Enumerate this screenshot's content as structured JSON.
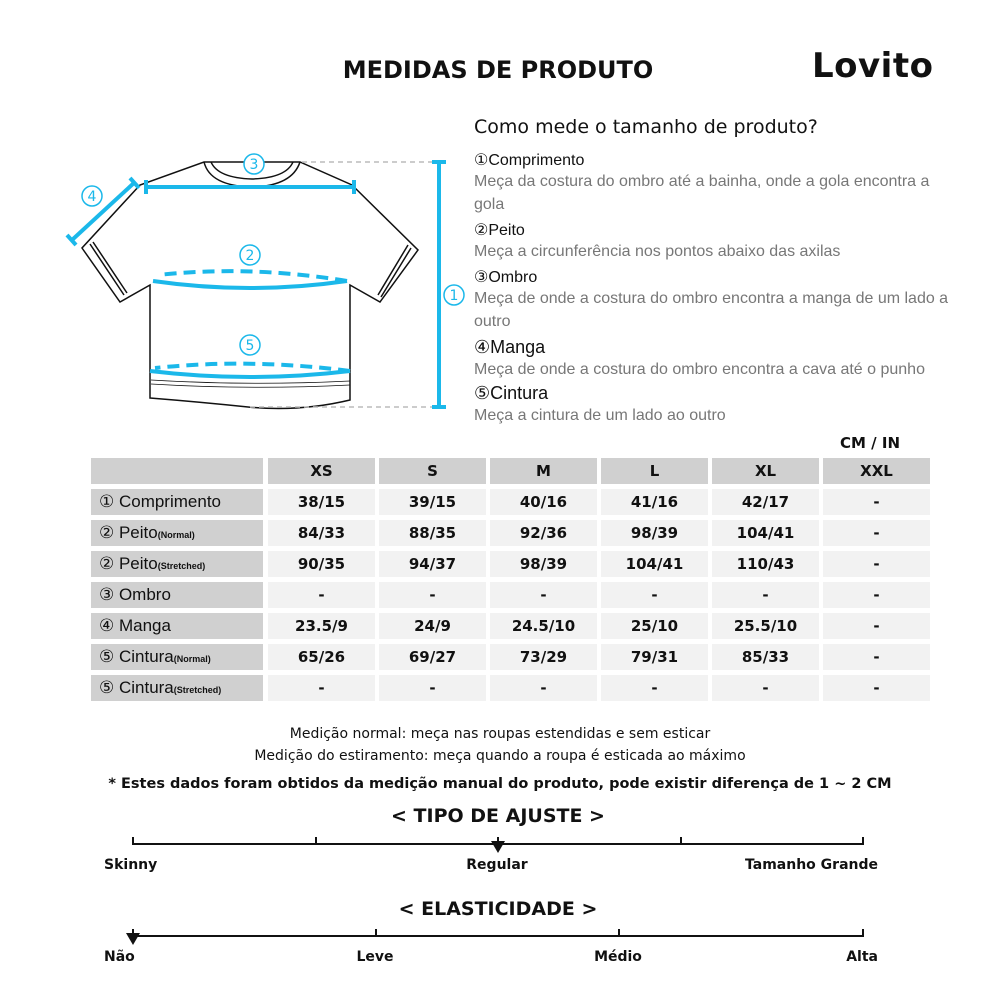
{
  "title": "MEDIDAS DE PRODUTO",
  "logo": "Lovito",
  "guide": {
    "heading": "Como mede o tamanho de produto?",
    "items": [
      {
        "label": "①Comprimento",
        "desc": "Meça da costura do ombro até a bainha, onde a gola encontra a gola"
      },
      {
        "label": "②Peito",
        "desc": "Meça a circunferência nos pontos abaixo das axilas"
      },
      {
        "label": "③Ombro",
        "desc": "Meça de onde a costura do ombro encontra a manga de um lado a outro"
      },
      {
        "label": "④Manga",
        "desc": "Meça de onde a costura do ombro encontra a cava até o punho"
      },
      {
        "label": "⑤Cintura",
        "desc": "Meça a cintura de um lado ao outro"
      }
    ],
    "diagram_markers": [
      "①",
      "②",
      "③",
      "④",
      "⑤"
    ],
    "accent": "#1bb8ea"
  },
  "table": {
    "unit": "CM / IN",
    "sizes": [
      "XS",
      "S",
      "M",
      "L",
      "XL",
      "XXL"
    ],
    "rows": [
      {
        "label": "① Comprimento",
        "sub": "",
        "values": [
          "38/15",
          "39/15",
          "40/16",
          "41/16",
          "42/17",
          "-"
        ]
      },
      {
        "label": "② Peito",
        "sub": "(Normal)",
        "values": [
          "84/33",
          "88/35",
          "92/36",
          "98/39",
          "104/41",
          "-"
        ]
      },
      {
        "label": "② Peito",
        "sub": "(Stretched)",
        "values": [
          "90/35",
          "94/37",
          "98/39",
          "104/41",
          "110/43",
          "-"
        ]
      },
      {
        "label": "③ Ombro",
        "sub": "",
        "values": [
          "-",
          "-",
          "-",
          "-",
          "-",
          "-"
        ]
      },
      {
        "label": "④ Manga",
        "sub": "",
        "values": [
          "23.5/9",
          "24/9",
          "24.5/10",
          "25/10",
          "25.5/10",
          "-"
        ]
      },
      {
        "label": "⑤ Cintura",
        "sub": "(Normal)",
        "values": [
          "65/26",
          "69/27",
          "73/29",
          "79/31",
          "85/33",
          "-"
        ]
      },
      {
        "label": "⑤ Cintura",
        "sub": "(Stretched)",
        "values": [
          "-",
          "-",
          "-",
          "-",
          "-",
          "-"
        ]
      }
    ]
  },
  "notes": [
    "Medição normal: meça nas roupas estendidas e sem esticar",
    "Medição do estiramento: meça quando a roupa é esticada ao máximo",
    "* Estes dados foram obtidos da medição manual do produto, pode existir diferença de 1 ~ 2 CM"
  ],
  "fit": {
    "title": "< TIPO DE AJUSTE >",
    "labels": [
      "Skinny",
      "Regular",
      "Tamanho Grande"
    ],
    "selected": "Regular"
  },
  "elasticity": {
    "title": "< ELASTICIDADE >",
    "labels": [
      "Não",
      "Leve",
      "Médio",
      "Alta"
    ],
    "selected": "Não"
  }
}
